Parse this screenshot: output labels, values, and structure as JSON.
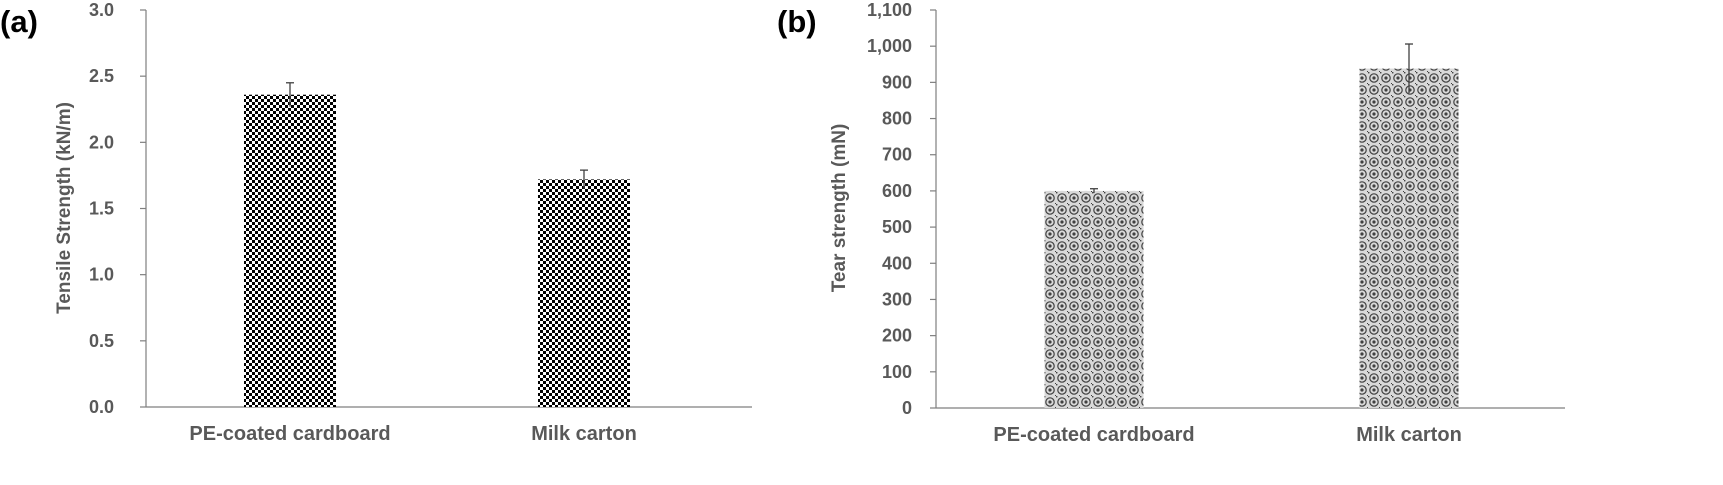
{
  "chart_data": [
    {
      "panel_label": "(a)",
      "type": "bar",
      "categories": [
        "PE-coated cardboard",
        "Milk carton"
      ],
      "series": [
        {
          "values": [
            2.36,
            1.72
          ],
          "errors": [
            0.09,
            0.07
          ]
        }
      ],
      "title": "",
      "xlabel": "",
      "ylabel": "Tensile Strength (kN/m)",
      "ylim": [
        0,
        3.0
      ],
      "yticks": [
        0,
        0.5,
        1.0,
        1.5,
        2.0,
        2.5,
        3.0
      ],
      "ytick_labels": [
        "0.0",
        "0.5",
        "1.0",
        "1.5",
        "2.0",
        "2.5",
        "3.0"
      ],
      "grid": false,
      "legend": "none",
      "bar_pattern": "checkerboard",
      "colors": {
        "axis": "#7f7f7f",
        "text": "#595959",
        "bar_dark": "#000000",
        "bar_light": "#ffffff"
      }
    },
    {
      "panel_label": "(b)",
      "type": "bar",
      "categories": [
        "PE-coated cardboard",
        "Milk carton"
      ],
      "series": [
        {
          "values": [
            600,
            938
          ],
          "errors": [
            6,
            68
          ]
        }
      ],
      "title": "",
      "xlabel": "",
      "ylabel": "Tear strength (mN)",
      "ylim": [
        0,
        1100
      ],
      "yticks": [
        0,
        100,
        200,
        300,
        400,
        500,
        600,
        700,
        800,
        900,
        1000,
        1100
      ],
      "ytick_labels": [
        "0",
        "100",
        "200",
        "300",
        "400",
        "500",
        "600",
        "700",
        "800",
        "900",
        "1,000",
        "1,100"
      ],
      "grid": false,
      "legend": "none",
      "bar_pattern": "circles",
      "colors": {
        "axis": "#7f7f7f",
        "text": "#595959",
        "bar_dark": "#404040",
        "bar_light": "#d9d9d9"
      }
    }
  ]
}
